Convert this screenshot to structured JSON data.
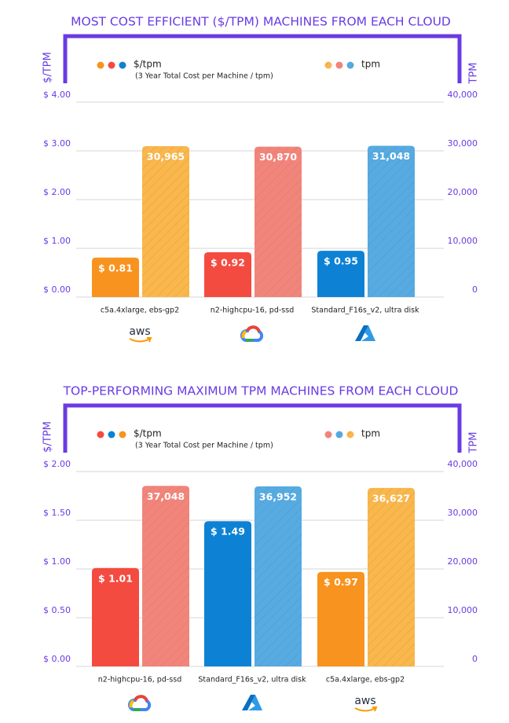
{
  "chart_data": [
    {
      "type": "bar",
      "title": "MOST COST EFFICIENT ($/TPM) MACHINES FROM EACH CLOUD",
      "y_label": "$/TPM",
      "y2_label": "TPM",
      "legend_note": "(3 Year Total Cost per Machine / tpm)",
      "categories": [
        "c5a.4xlarge, ebs-gp2",
        "n2-highcpu-16, pd-ssd",
        "Standard_F16s_v2, ultra disk"
      ],
      "logos": [
        "aws",
        null,
        null
      ],
      "series": [
        {
          "name": "$/tpm",
          "colors": [
            "#f7931e",
            "#f44b40",
            "#0d82d4"
          ],
          "values": [
            0.81,
            0.92,
            0.95
          ],
          "value_labels": [
            "$ 0.81",
            "$ 0.92",
            "$ 0.95"
          ]
        },
        {
          "name": "tpm",
          "axis": "y2",
          "hatch": true,
          "colors": [
            "#f9b74c",
            "#f2857b",
            "#55abe2"
          ],
          "values": [
            30965,
            30870,
            31048
          ],
          "value_labels": [
            "30,965",
            "30,870",
            "31,048"
          ]
        }
      ],
      "ylim": [
        0,
        4
      ],
      "yticks": [
        {
          "value": 0,
          "label": "$ 0.00"
        },
        {
          "value": 1,
          "label": "$ 1.00"
        },
        {
          "value": 2,
          "label": "$ 2.00"
        },
        {
          "value": 3,
          "label": "$ 3.00"
        },
        {
          "value": 4,
          "label": "$ 4.00"
        }
      ],
      "y2lim": [
        0,
        40000
      ],
      "y2ticks": [
        0,
        {
          "value": 10000,
          "label": "10,000"
        },
        {
          "value": 20000,
          "label": "20,000"
        },
        {
          "value": 30000,
          "label": "30,000"
        },
        {
          "value": 40000,
          "label": "40,000"
        }
      ],
      "grid": true
    },
    {
      "type": "bar",
      "title": "TOP-PERFORMING MAXIMUM TPM MACHINES FROM EACH CLOUD",
      "y_label": "$/TPM",
      "y2_label": "TPM",
      "legend_note": "(3 Year Total Cost per Machine / tpm)",
      "categories": [
        "n2-highcpu-16, pd-ssd",
        "Standard_F16s_v2, ultra disk",
        "c5a.4xlarge, ebs-gp2"
      ],
      "logos": [
        null,
        null,
        "aws"
      ],
      "series": [
        {
          "name": "$/tpm",
          "colors": [
            "#f44b40",
            "#0d82d4",
            "#f7931e"
          ],
          "values": [
            1.01,
            1.49,
            0.97
          ],
          "value_labels": [
            "$ 1.01",
            "$ 1.49",
            "$ 0.97"
          ]
        },
        {
          "name": "tpm",
          "axis": "y2",
          "hatch": true,
          "colors": [
            "#f2857b",
            "#55abe2",
            "#f9b74c"
          ],
          "values": [
            37048,
            36952,
            36627
          ],
          "value_labels": [
            "37,048",
            "36,952",
            "36,627"
          ]
        }
      ],
      "ylim": [
        0,
        2
      ],
      "yticks": [
        {
          "value": 0,
          "label": "$ 0.00"
        },
        {
          "value": 0.5,
          "label": "$ 0.50"
        },
        {
          "value": 1,
          "label": "$ 1.00"
        },
        {
          "value": 1.5,
          "label": "$ 1.50"
        },
        {
          "value": 2,
          "label": "$ 2.00"
        }
      ],
      "y2lim": [
        0,
        40000
      ],
      "y2ticks": [
        0,
        {
          "value": 10000,
          "label": "10,000"
        },
        {
          "value": 20000,
          "label": "20,000"
        },
        {
          "value": 30000,
          "label": "30,000"
        },
        {
          "value": 40000,
          "label": "40,000"
        }
      ],
      "grid": true
    }
  ]
}
